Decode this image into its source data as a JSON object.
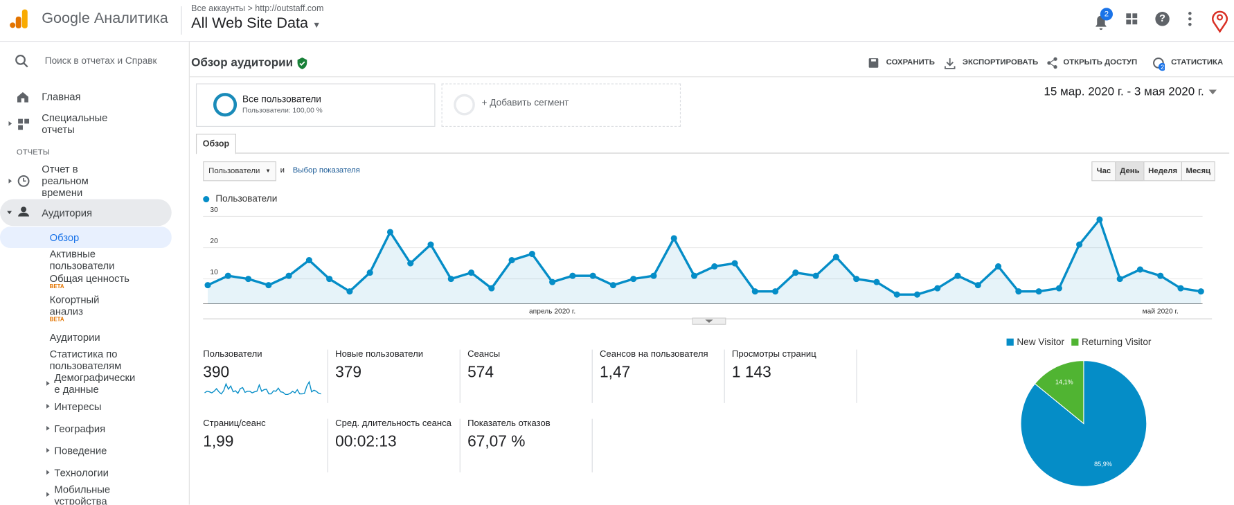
{
  "header": {
    "product": "Google Аналитика",
    "breadcrumb": "Все аккаунты",
    "url": "http://outstaff.com",
    "view": "All Web Site Data",
    "notifications": 2
  },
  "sidebar": {
    "search": "Поиск в отчетах и Справке",
    "items": [
      "Главная",
      "Специальные отчеты"
    ],
    "section": "ОТЧЕТЫ",
    "reports": [
      "Отчет в реальном времени",
      "Аудитория"
    ],
    "audience": [
      "Обзор",
      "Активные пользователи",
      "Общая ценность",
      "Когортный анализ",
      "Аудитории",
      "Статистика по пользователям",
      "Демографические данные",
      "Интересы",
      "География",
      "Поведение",
      "Технологии",
      "Мобильные устройства"
    ],
    "beta": "BETA"
  },
  "page": {
    "title": "Обзор аудитории",
    "actions": [
      "СОХРАНИТЬ",
      "ЭКСПОРТИРОВАТЬ",
      "ОТКРЫТЬ ДОСТУП",
      "СТАТИСТИКА"
    ],
    "insights_count": 2,
    "segment": {
      "name": "Все пользователи",
      "detail": "Пользователи: 100,00 %"
    },
    "add_segment": "+ Добавить сегмент",
    "date_range": "15 мар. 2020 г. - 3 мая 2020 г.",
    "tab": "Обзор",
    "metric_select": "Пользователи",
    "conjunction": "и",
    "choose_metric": "Выбор показателя",
    "periods": [
      "Час",
      "День",
      "Неделя",
      "Месяц"
    ]
  },
  "metrics": [
    {
      "label": "Пользователи",
      "value": "390"
    },
    {
      "label": "Новые пользователи",
      "value": "379"
    },
    {
      "label": "Сеансы",
      "value": "574"
    },
    {
      "label": "Сеансов на пользователя",
      "value": "1,47"
    },
    {
      "label": "Просмотры страниц",
      "value": "1 143"
    },
    {
      "label": "Страниц/сеанс",
      "value": "1,99"
    },
    {
      "label": "Сред. длительность сеанса",
      "value": "00:02:13"
    },
    {
      "label": "Показатель отказов",
      "value": "67,07 %"
    }
  ],
  "chart_data": [
    {
      "type": "line",
      "categories": [
        null,
        null,
        null,
        null,
        null,
        null,
        null,
        null,
        null,
        null,
        null,
        null,
        null,
        null,
        null,
        null,
        null,
        "апрель 2020 г.",
        null,
        null,
        null,
        null,
        null,
        null,
        null,
        null,
        null,
        null,
        null,
        null,
        null,
        null,
        null,
        null,
        null,
        null,
        null,
        null,
        null,
        null,
        null,
        null,
        null,
        null,
        null,
        null,
        null,
        "май 2020 г.",
        null,
        null
      ],
      "series": [
        {
          "name": "Пользователи",
          "color": "#058dc7",
          "values": [
            8,
            11,
            10,
            8,
            11,
            16,
            10,
            6,
            12,
            25,
            15,
            21,
            10,
            12,
            7,
            16,
            18,
            9,
            11,
            11,
            8,
            10,
            11,
            23,
            11,
            14,
            15,
            6,
            6,
            12,
            11,
            17,
            10,
            9,
            5,
            5,
            7,
            11,
            8,
            14,
            6,
            6,
            7,
            21,
            29,
            10,
            13,
            11,
            7,
            6
          ]
        }
      ],
      "ylim": [
        2,
        32
      ],
      "yticks": [
        10,
        20,
        30
      ],
      "grid": true
    },
    {
      "type": "pie",
      "categories": [
        "New Visitor",
        "Returning Visitor"
      ],
      "values": [
        85.9,
        14.1
      ],
      "value_labels": [
        "85,9%",
        "14,1%"
      ],
      "colors": [
        "#058dc7",
        "#50b432"
      ],
      "legend": "top"
    }
  ]
}
